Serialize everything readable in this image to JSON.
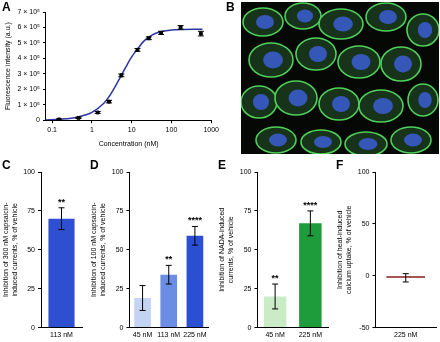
{
  "chart_data": [
    {
      "panel": "A",
      "type": "scatter",
      "log": "x",
      "grid": false,
      "x_label": "Concentration (nM)",
      "y_label": "Fluorescence intensity (a.u.)",
      "x": [
        0.15,
        0.46,
        1.4,
        2.7,
        5.5,
        14,
        27,
        55,
        170,
        550
      ],
      "values": [
        5000,
        15000,
        50000,
        120000,
        290000,
        455000,
        530000,
        565000,
        600000,
        560000
      ],
      "errors": [
        3000,
        4000,
        6000,
        8000,
        9000,
        9000,
        9000,
        10000,
        12000,
        15000
      ],
      "color": "#000000",
      "fit": {
        "color": "#2a35a6",
        "x": [
          0.07,
          0.15,
          0.3,
          0.6,
          1,
          2,
          3,
          5,
          7,
          10,
          15,
          20,
          30,
          50,
          100,
          200,
          600
        ],
        "values": [
          2000,
          6000,
          12000,
          30000,
          50000,
          110000,
          170000,
          270000,
          340000,
          410000,
          470000,
          510000,
          545000,
          570000,
          583000,
          587000,
          588000
        ]
      },
      "xlim": [
        0.07,
        1000
      ],
      "xticks": [
        0.1,
        1,
        10,
        100,
        1000
      ],
      "ylim": [
        0,
        700000
      ],
      "yticks": [
        0,
        {
          "value": 100000,
          "label": "1 × 10⁵"
        },
        {
          "value": 200000,
          "label": "2 × 10⁵"
        },
        {
          "value": 300000,
          "label": "3 × 10⁵"
        },
        {
          "value": 400000,
          "label": "4 × 10⁵"
        },
        {
          "value": 500000,
          "label": "5 × 10⁵"
        },
        {
          "value": 600000,
          "label": "6 × 10⁵"
        },
        {
          "value": 700000,
          "label": "7 × 10⁵"
        }
      ]
    },
    {
      "panel": "C",
      "type": "bar",
      "grid": false,
      "y_label": "Inhibition of 300 nM capsaicin-induced currents, % of vehicle",
      "categories": [
        "113 nM"
      ],
      "values": [
        70
      ],
      "errors": [
        7
      ],
      "annotations": [
        "**"
      ],
      "colors": [
        "#2e4fcf"
      ],
      "ylim": [
        0,
        100
      ],
      "yticks": [
        0,
        25,
        50,
        75,
        100
      ]
    },
    {
      "panel": "D",
      "type": "bar",
      "grid": false,
      "y_label": "Inhibition of 100 nM capsaicin-induced currents, % of vehicle",
      "categories": [
        "45 nM",
        "113 nM",
        "225 nM"
      ],
      "values": [
        19,
        34,
        59
      ],
      "errors": [
        8,
        6,
        6
      ],
      "annotations": [
        null,
        "**",
        "****"
      ],
      "colors": [
        "#c5d3f2",
        "#6b8de3",
        "#2b4fd3"
      ],
      "ylim": [
        0,
        100
      ],
      "yticks": [
        0,
        25,
        50,
        75,
        100
      ]
    },
    {
      "panel": "E",
      "type": "bar",
      "grid": false,
      "y_label": "Inhibition of NADA-induced currents, % of vehicle",
      "categories": [
        "45 nM",
        "225 nM"
      ],
      "values": [
        20,
        67
      ],
      "errors": [
        8,
        8
      ],
      "annotations": [
        "**",
        "****"
      ],
      "colors": [
        "#c9ebc5",
        "#1e9b3a"
      ],
      "ylim": [
        0,
        100
      ],
      "yticks": [
        0,
        25,
        50,
        75,
        100
      ]
    },
    {
      "panel": "F",
      "type": "bar",
      "grid": false,
      "y_label": "Inhibition of heat-induced calcium uptake, % of vehicle",
      "categories": [
        "225 nM"
      ],
      "values": [
        -2
      ],
      "errors": [
        4
      ],
      "annotations": [
        null
      ],
      "colors": [
        "#8a1d1d"
      ],
      "ylim": [
        -50,
        100
      ],
      "yticks": [
        -50,
        0,
        50,
        100
      ]
    }
  ],
  "image_panel": {
    "panel": "B"
  }
}
